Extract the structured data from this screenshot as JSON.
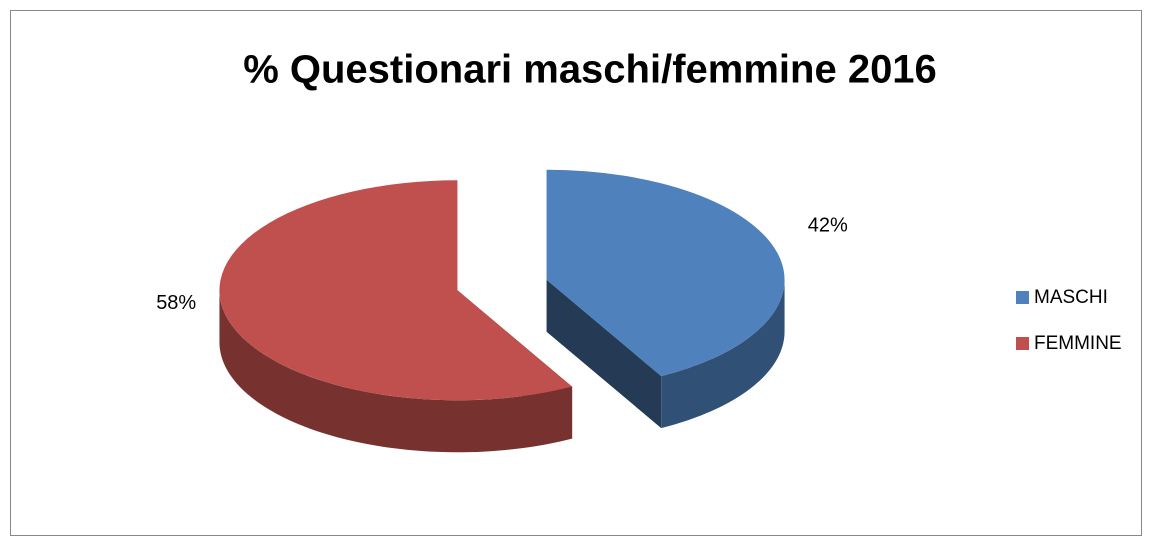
{
  "chart_data": {
    "type": "pie",
    "title": "% Questionari maschi/femmine 2016",
    "categories": [
      "MASCHI",
      "FEMMINE"
    ],
    "values": [
      42,
      58
    ],
    "value_labels": [
      "42%",
      "58%"
    ],
    "colors": [
      "#4f81bd",
      "#c0504d"
    ],
    "legend": "right"
  }
}
